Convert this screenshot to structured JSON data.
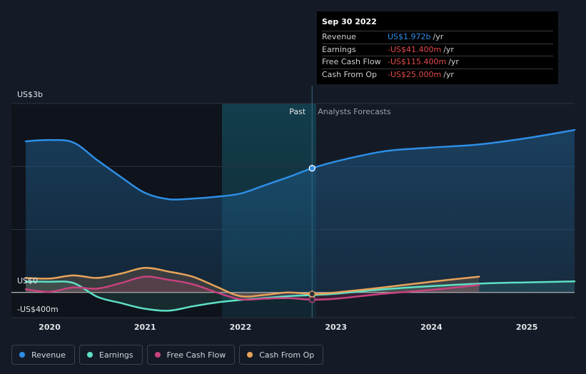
{
  "chart_data": {
    "type": "line",
    "x_axis": {
      "min": 2019.6,
      "max": 2025.5,
      "ticks": [
        "2020",
        "2021",
        "2022",
        "2023",
        "2024",
        "2025"
      ]
    },
    "y_axis": {
      "min": -400,
      "max": 3000,
      "ticks": [
        "US$3b",
        "US$0",
        "-US$400m"
      ]
    },
    "divider_x": 2022.75,
    "past_label": "Past",
    "forecast_label": "Analysts Forecasts",
    "series": [
      {
        "name": "Revenue",
        "color": "#2e8ee6",
        "points": [
          [
            2019.75,
            2400
          ],
          [
            2020.0,
            2420
          ],
          [
            2020.25,
            2380
          ],
          [
            2020.5,
            2100
          ],
          [
            2020.75,
            1830
          ],
          [
            2021.0,
            1580
          ],
          [
            2021.25,
            1480
          ],
          [
            2021.5,
            1490
          ],
          [
            2021.75,
            1520
          ],
          [
            2022.0,
            1570
          ],
          [
            2022.25,
            1700
          ],
          [
            2022.5,
            1830
          ],
          [
            2022.75,
            1972
          ],
          [
            2023.0,
            2080
          ],
          [
            2023.5,
            2240
          ],
          [
            2024.0,
            2300
          ],
          [
            2024.5,
            2350
          ],
          [
            2025.0,
            2450
          ],
          [
            2025.5,
            2580
          ]
        ]
      },
      {
        "name": "Earnings",
        "color": "#5ee0c6",
        "points": [
          [
            2019.75,
            170
          ],
          [
            2020.0,
            170
          ],
          [
            2020.25,
            150
          ],
          [
            2020.5,
            -70
          ],
          [
            2020.75,
            -170
          ],
          [
            2021.0,
            -260
          ],
          [
            2021.25,
            -290
          ],
          [
            2021.5,
            -220
          ],
          [
            2021.75,
            -160
          ],
          [
            2022.0,
            -120
          ],
          [
            2022.25,
            -90
          ],
          [
            2022.5,
            -60
          ],
          [
            2022.75,
            -41.4
          ],
          [
            2023.0,
            -20
          ],
          [
            2023.5,
            50
          ],
          [
            2024.0,
            100
          ],
          [
            2024.5,
            140
          ],
          [
            2025.0,
            160
          ],
          [
            2025.5,
            175
          ]
        ]
      },
      {
        "name": "Free Cash Flow",
        "color": "#c8427f",
        "points": [
          [
            2019.75,
            50
          ],
          [
            2020.0,
            10
          ],
          [
            2020.25,
            80
          ],
          [
            2020.5,
            60
          ],
          [
            2020.75,
            150
          ],
          [
            2021.0,
            250
          ],
          [
            2021.25,
            200
          ],
          [
            2021.5,
            130
          ],
          [
            2021.75,
            0
          ],
          [
            2022.0,
            -110
          ],
          [
            2022.25,
            -100
          ],
          [
            2022.5,
            -90
          ],
          [
            2022.75,
            -115.4
          ],
          [
            2023.0,
            -100
          ],
          [
            2023.5,
            -20
          ],
          [
            2024.0,
            40
          ],
          [
            2024.5,
            120
          ]
        ]
      },
      {
        "name": "Cash From Op",
        "color": "#e8a35a",
        "points": [
          [
            2019.75,
            230
          ],
          [
            2020.0,
            220
          ],
          [
            2020.25,
            270
          ],
          [
            2020.5,
            230
          ],
          [
            2020.75,
            300
          ],
          [
            2021.0,
            390
          ],
          [
            2021.25,
            330
          ],
          [
            2021.5,
            250
          ],
          [
            2021.75,
            90
          ],
          [
            2022.0,
            -60
          ],
          [
            2022.25,
            -40
          ],
          [
            2022.5,
            0
          ],
          [
            2022.75,
            -25
          ],
          [
            2023.0,
            0
          ],
          [
            2023.5,
            80
          ],
          [
            2024.0,
            170
          ],
          [
            2024.5,
            250
          ]
        ]
      }
    ],
    "tooltip": {
      "date": "Sep 30 2022",
      "rows": [
        {
          "label": "Revenue",
          "value": "US$1.972b",
          "unit": "/yr",
          "color": "#2e8ee6"
        },
        {
          "label": "Earnings",
          "value": "-US$41.400m",
          "unit": "/yr",
          "color": "#e24a4a"
        },
        {
          "label": "Free Cash Flow",
          "value": "-US$115.400m",
          "unit": "/yr",
          "color": "#e24a4a"
        },
        {
          "label": "Cash From Op",
          "value": "-US$25.000m",
          "unit": "/yr",
          "color": "#e24a4a"
        }
      ]
    },
    "legend": [
      {
        "label": "Revenue",
        "color": "#2e8ee6"
      },
      {
        "label": "Earnings",
        "color": "#5ee0c6"
      },
      {
        "label": "Free Cash Flow",
        "color": "#c8427f"
      },
      {
        "label": "Cash From Op",
        "color": "#e8a35a"
      }
    ]
  }
}
